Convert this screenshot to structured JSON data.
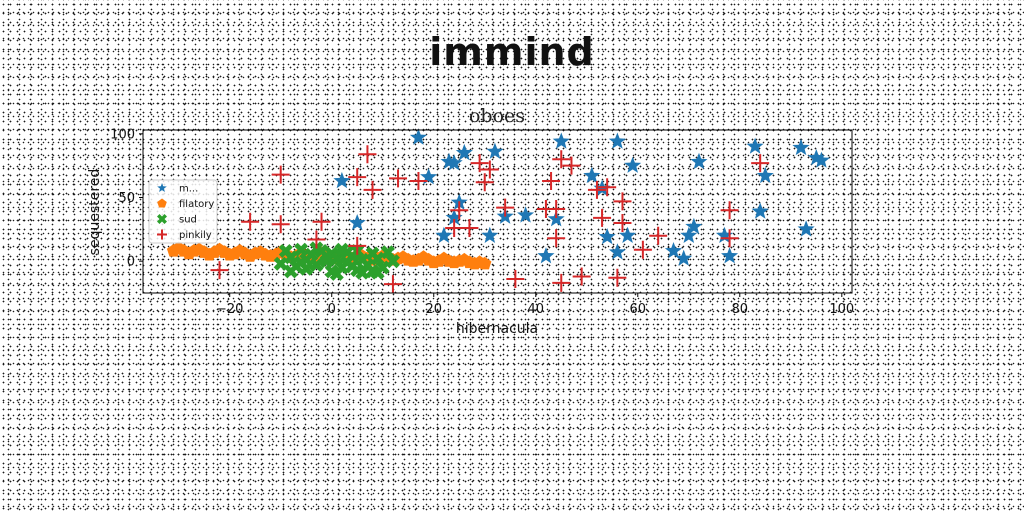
{
  "figure": {
    "title": "immind"
  },
  "chart_data": {
    "type": "scatter",
    "title": "oboes",
    "xlabel": "hibernacula",
    "ylabel": "sequestered",
    "xlim": [
      -37,
      102
    ],
    "ylim": [
      -25,
      103
    ],
    "xticks": [
      -20,
      0,
      20,
      40,
      60,
      80,
      100
    ],
    "xtick_labels": [
      "−20",
      "0",
      "20",
      "40",
      "60",
      "80",
      "100"
    ],
    "yticks": [
      0,
      50,
      100
    ],
    "ytick_labels": [
      "0",
      "50",
      "100"
    ],
    "grid": false,
    "legend": {
      "placement": "center-left",
      "entries": [
        "m...",
        "filatory",
        "sud",
        "pinkily"
      ]
    },
    "series": [
      {
        "name": "m...",
        "marker": "star",
        "color": "#1f77b4",
        "points": [
          [
            2,
            63
          ],
          [
            5,
            30
          ],
          [
            17,
            97
          ],
          [
            19,
            66
          ],
          [
            22,
            20
          ],
          [
            23,
            78
          ],
          [
            24,
            77
          ],
          [
            24,
            34
          ],
          [
            25,
            46
          ],
          [
            26,
            85
          ],
          [
            31,
            20
          ],
          [
            32,
            86
          ],
          [
            34,
            35
          ],
          [
            38,
            36
          ],
          [
            42,
            4
          ],
          [
            44,
            33
          ],
          [
            45,
            94
          ],
          [
            51,
            67
          ],
          [
            53,
            57
          ],
          [
            54,
            19
          ],
          [
            56,
            94
          ],
          [
            56,
            7
          ],
          [
            58,
            20
          ],
          [
            59,
            75
          ],
          [
            67,
            8
          ],
          [
            69,
            2
          ],
          [
            70,
            20
          ],
          [
            71,
            27
          ],
          [
            72,
            78
          ],
          [
            77,
            20
          ],
          [
            78,
            4
          ],
          [
            83,
            90
          ],
          [
            84,
            39
          ],
          [
            85,
            67
          ],
          [
            92,
            89
          ],
          [
            93,
            25
          ],
          [
            95,
            81
          ],
          [
            96,
            79
          ]
        ]
      },
      {
        "name": "filatory",
        "marker": "pentagon",
        "color": "#ff7f0e",
        "points": [
          [
            -31,
            8
          ],
          [
            -29,
            8
          ],
          [
            -27,
            8
          ],
          [
            -25,
            7
          ],
          [
            -23,
            7
          ],
          [
            -21,
            7
          ],
          [
            -19,
            6
          ],
          [
            -17,
            6
          ],
          [
            -15,
            6
          ],
          [
            -13,
            5
          ],
          [
            -11,
            5
          ],
          [
            -9,
            5
          ],
          [
            -7,
            4
          ],
          [
            -5,
            4
          ],
          [
            -3,
            4
          ],
          [
            -1,
            4
          ],
          [
            1,
            3
          ],
          [
            3,
            3
          ],
          [
            5,
            3
          ],
          [
            7,
            2
          ],
          [
            9,
            2
          ],
          [
            11,
            2
          ],
          [
            13,
            2
          ],
          [
            15,
            1
          ],
          [
            17,
            1
          ],
          [
            19,
            1
          ],
          [
            21,
            0
          ],
          [
            23,
            0
          ],
          [
            25,
            0
          ],
          [
            27,
            -1
          ],
          [
            29,
            -1
          ],
          [
            30,
            -2
          ],
          [
            -30,
            10
          ],
          [
            -26,
            9
          ],
          [
            -22,
            9
          ],
          [
            -18,
            8
          ],
          [
            -14,
            7
          ],
          [
            -10,
            7
          ],
          [
            -6,
            6
          ],
          [
            -2,
            6
          ],
          [
            2,
            5
          ],
          [
            6,
            4
          ],
          [
            10,
            4
          ],
          [
            14,
            3
          ],
          [
            18,
            3
          ],
          [
            22,
            2
          ],
          [
            26,
            1
          ],
          [
            -28,
            6
          ],
          [
            -24,
            5
          ],
          [
            -20,
            5
          ],
          [
            -16,
            4
          ],
          [
            -12,
            4
          ],
          [
            -8,
            3
          ],
          [
            -4,
            3
          ],
          [
            0,
            2
          ],
          [
            4,
            2
          ],
          [
            8,
            1
          ],
          [
            12,
            1
          ],
          [
            16,
            0
          ],
          [
            20,
            -1
          ],
          [
            24,
            -1
          ],
          [
            28,
            -2
          ]
        ]
      },
      {
        "name": "sud",
        "marker": "x-filled",
        "color": "#2ca02c",
        "points": [
          [
            -10,
            -2
          ],
          [
            -9,
            8
          ],
          [
            -8,
            3
          ],
          [
            -7,
            -4
          ],
          [
            -6,
            9
          ],
          [
            -5,
            1
          ],
          [
            -5,
            -6
          ],
          [
            -4,
            5
          ],
          [
            -3,
            -3
          ],
          [
            -2,
            8
          ],
          [
            -1,
            0
          ],
          [
            0,
            -8
          ],
          [
            0,
            6
          ],
          [
            1,
            2
          ],
          [
            2,
            -5
          ],
          [
            2,
            9
          ],
          [
            3,
            -1
          ],
          [
            4,
            4
          ],
          [
            5,
            -7
          ],
          [
            5,
            8
          ],
          [
            6,
            1
          ],
          [
            7,
            -3
          ],
          [
            8,
            6
          ],
          [
            8,
            -8
          ],
          [
            9,
            2
          ],
          [
            10,
            -5
          ],
          [
            11,
            7
          ],
          [
            12,
            0
          ],
          [
            -8,
            -8
          ],
          [
            -3,
            10
          ],
          [
            1,
            -10
          ],
          [
            3,
            7
          ],
          [
            6,
            -9
          ],
          [
            9,
            -9
          ],
          [
            -6,
            -1
          ],
          [
            4,
            -4
          ],
          [
            -1,
            4
          ]
        ]
      },
      {
        "name": "pinkily",
        "marker": "plus",
        "color": "#d62728",
        "points": [
          [
            -22,
            -7
          ],
          [
            -16,
            31
          ],
          [
            -10,
            68
          ],
          [
            -10,
            29
          ],
          [
            -3,
            17
          ],
          [
            -2,
            31
          ],
          [
            5,
            12
          ],
          [
            5,
            66
          ],
          [
            7,
            84
          ],
          [
            8,
            56
          ],
          [
            12,
            -18
          ],
          [
            13,
            65
          ],
          [
            17,
            63
          ],
          [
            24,
            26
          ],
          [
            25,
            40
          ],
          [
            27,
            26
          ],
          [
            29,
            77
          ],
          [
            30,
            62
          ],
          [
            31,
            72
          ],
          [
            34,
            42
          ],
          [
            36,
            -14
          ],
          [
            42,
            41
          ],
          [
            43,
            63
          ],
          [
            44,
            41
          ],
          [
            44,
            18
          ],
          [
            45,
            -17
          ],
          [
            45,
            80
          ],
          [
            47,
            75
          ],
          [
            49,
            -12
          ],
          [
            52,
            56
          ],
          [
            53,
            34
          ],
          [
            54,
            58
          ],
          [
            56,
            -13
          ],
          [
            57,
            30
          ],
          [
            57,
            47
          ],
          [
            61,
            9
          ],
          [
            64,
            20
          ],
          [
            78,
            18
          ],
          [
            78,
            40
          ],
          [
            84,
            77
          ]
        ]
      }
    ]
  }
}
